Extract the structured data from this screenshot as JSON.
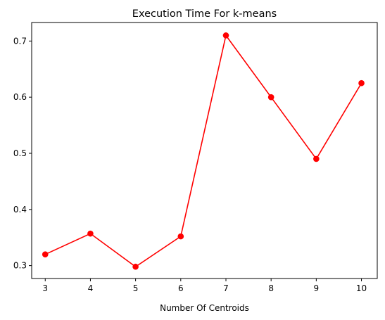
{
  "chart_data": {
    "type": "line",
    "title": "Execution Time For k-means",
    "xlabel": "Number Of Centroids",
    "ylabel": "",
    "x": [
      3,
      4,
      5,
      6,
      7,
      8,
      9,
      10
    ],
    "series": [
      {
        "values": [
          0.32,
          0.357,
          0.298,
          0.352,
          0.71,
          0.6,
          0.49,
          0.625
        ],
        "color": "#ff0000",
        "marker": "circle"
      }
    ],
    "xticks": [
      "3",
      "4",
      "5",
      "6",
      "7",
      "8",
      "9",
      "10"
    ],
    "yticks": [
      "0.3",
      "0.4",
      "0.5",
      "0.6",
      "0.7"
    ],
    "xlim": [
      2.7,
      10.35
    ],
    "ylim": [
      0.277,
      0.733
    ],
    "grid": false,
    "legend": "none"
  }
}
